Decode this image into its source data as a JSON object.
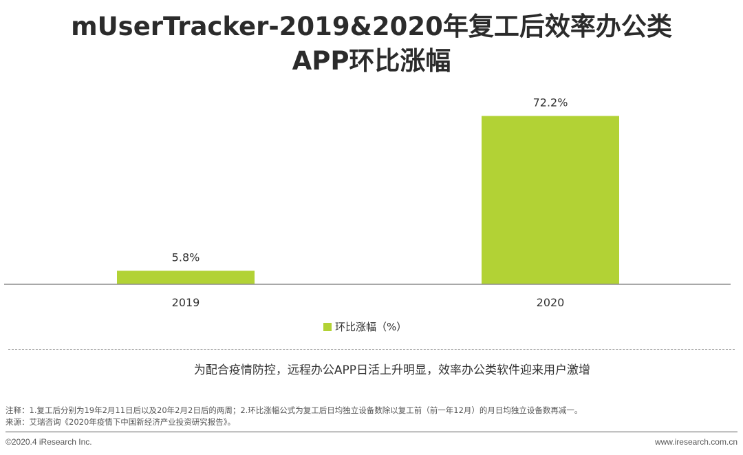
{
  "title_line1": "mUserTracker-2019&2020年复工后效率办公类",
  "title_line2": "APP环比涨幅",
  "chart_data": {
    "type": "bar",
    "categories": [
      "2019",
      "2020"
    ],
    "series": [
      {
        "name": "环比涨幅（%）",
        "values": [
          5.8,
          72.2
        ]
      }
    ],
    "data_labels": [
      "5.8%",
      "72.2%"
    ],
    "ylim": [
      0,
      80
    ],
    "grid": false,
    "legend": "bottom",
    "bar_color": "#b2d235"
  },
  "conclusion": "为配合疫情防控，远程办公APP日活上升明显，效率办公类软件迎来用户激增",
  "footnote_1": "注释：1.复工后分别为19年2月11日后以及20年2月2日后的两周；2.环比涨幅公式为复工后日均独立设备数除以复工前（前一年12月）的月日均独立设备数再减一。",
  "footnote_2": "来源：艾瑞咨询《2020年疫情下中国新经济产业投资研究报告》。",
  "copyright": "©2020.4 iResearch Inc.",
  "website": "www.iresearch.com.cn"
}
